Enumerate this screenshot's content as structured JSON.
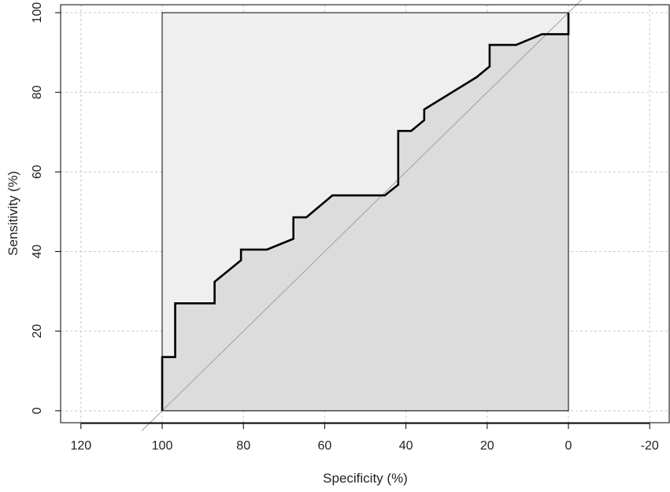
{
  "chart_data": {
    "type": "line",
    "title": "",
    "xlabel": "Specificity (%)",
    "ylabel": "Sensitivity (%)",
    "xlim": [
      125,
      -25
    ],
    "ylim": [
      -3,
      102
    ],
    "x_ticks": [
      120,
      100,
      80,
      60,
      40,
      20,
      0,
      -20
    ],
    "x_tick_labels": [
      "120",
      "100",
      "80",
      "60",
      "40",
      "20",
      "0",
      "-20"
    ],
    "y_ticks": [
      0,
      20,
      40,
      60,
      80,
      100
    ],
    "y_tick_labels": [
      "0",
      "20",
      "40",
      "60",
      "80",
      "100"
    ],
    "grid": true,
    "x_reversed": true,
    "colors": {
      "roc_line": "#000000",
      "auc_fill": "#dcdcdc",
      "upper_fill": "#efefef",
      "diagonal": "#a0a0a0",
      "grid": "#c8c8c8"
    },
    "series": [
      {
        "x": [
          100,
          100,
          96.8,
          96.8,
          87.1,
          87.1,
          80.6,
          80.6,
          74.2,
          67.7,
          67.7,
          64.5,
          58.1,
          45.2,
          41.9,
          41.9,
          38.7,
          35.5,
          35.5,
          22.6,
          19.4,
          19.4,
          12.9,
          6.5,
          0,
          0
        ],
        "y": [
          0,
          13.5,
          13.5,
          27.0,
          27.0,
          32.4,
          37.8,
          40.5,
          40.5,
          43.2,
          48.6,
          48.6,
          54.1,
          54.1,
          56.8,
          70.3,
          70.3,
          73.0,
          75.7,
          83.8,
          86.5,
          91.9,
          91.9,
          94.6,
          94.6,
          100
        ]
      }
    ]
  }
}
